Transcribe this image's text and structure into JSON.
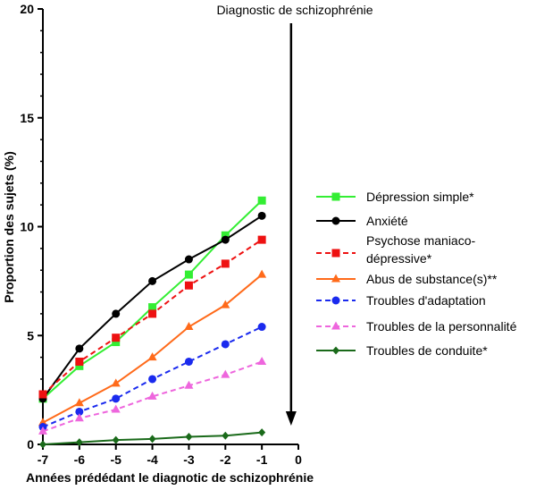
{
  "chart_data": {
    "type": "line",
    "title": "",
    "xlabel": "Années prédédant le diagnotic de schizophrénie",
    "ylabel": "Proportion des sujets (%)",
    "xlim": [
      -7,
      0
    ],
    "ylim": [
      0,
      20
    ],
    "x_ticks": [
      "-7",
      "-6",
      "-5",
      "-4",
      "-3",
      "-2",
      "-1",
      "0"
    ],
    "y_ticks": [
      "0",
      "5",
      "10",
      "15",
      "20"
    ],
    "grid": false,
    "legend_position": "right",
    "annotation": {
      "text": "Diagnostic de schizophrénie",
      "x": -0.2
    },
    "x": [
      -7,
      -6,
      -5,
      -4,
      -3,
      -2,
      -1
    ],
    "series": [
      {
        "name": "Dépression simple*",
        "color": "#33ee33",
        "dashed": false,
        "marker": "square",
        "values": [
          2.1,
          3.6,
          4.7,
          6.3,
          7.8,
          9.6,
          11.2
        ]
      },
      {
        "name": "Anxiété",
        "color": "#000000",
        "dashed": false,
        "marker": "circle",
        "values": [
          2.1,
          4.4,
          6.0,
          7.5,
          8.5,
          9.4,
          10.5
        ]
      },
      {
        "name": "Psychose maniaco-dépressive*",
        "color": "#ee1111",
        "dashed": true,
        "marker": "square",
        "values": [
          2.3,
          3.8,
          4.9,
          6.0,
          7.3,
          8.3,
          9.4
        ]
      },
      {
        "name": "Abus de substance(s)**",
        "color": "#ff6a1a",
        "dashed": false,
        "marker": "triangle",
        "values": [
          1.0,
          1.9,
          2.8,
          4.0,
          5.4,
          6.4,
          7.8
        ]
      },
      {
        "name": "Troubles d'adaptation",
        "color": "#1a2aee",
        "dashed": true,
        "marker": "circle",
        "values": [
          0.8,
          1.5,
          2.1,
          3.0,
          3.8,
          4.6,
          5.4
        ]
      },
      {
        "name": "Troubles de la personnalité",
        "color": "#ee66dd",
        "dashed": true,
        "marker": "triangle",
        "values": [
          0.6,
          1.2,
          1.6,
          2.2,
          2.7,
          3.2,
          3.8
        ]
      },
      {
        "name": "Troubles de conduite*",
        "color": "#1a6a1a",
        "dashed": false,
        "marker": "diamond",
        "values": [
          0.0,
          0.1,
          0.2,
          0.25,
          0.35,
          0.4,
          0.55
        ]
      }
    ]
  }
}
